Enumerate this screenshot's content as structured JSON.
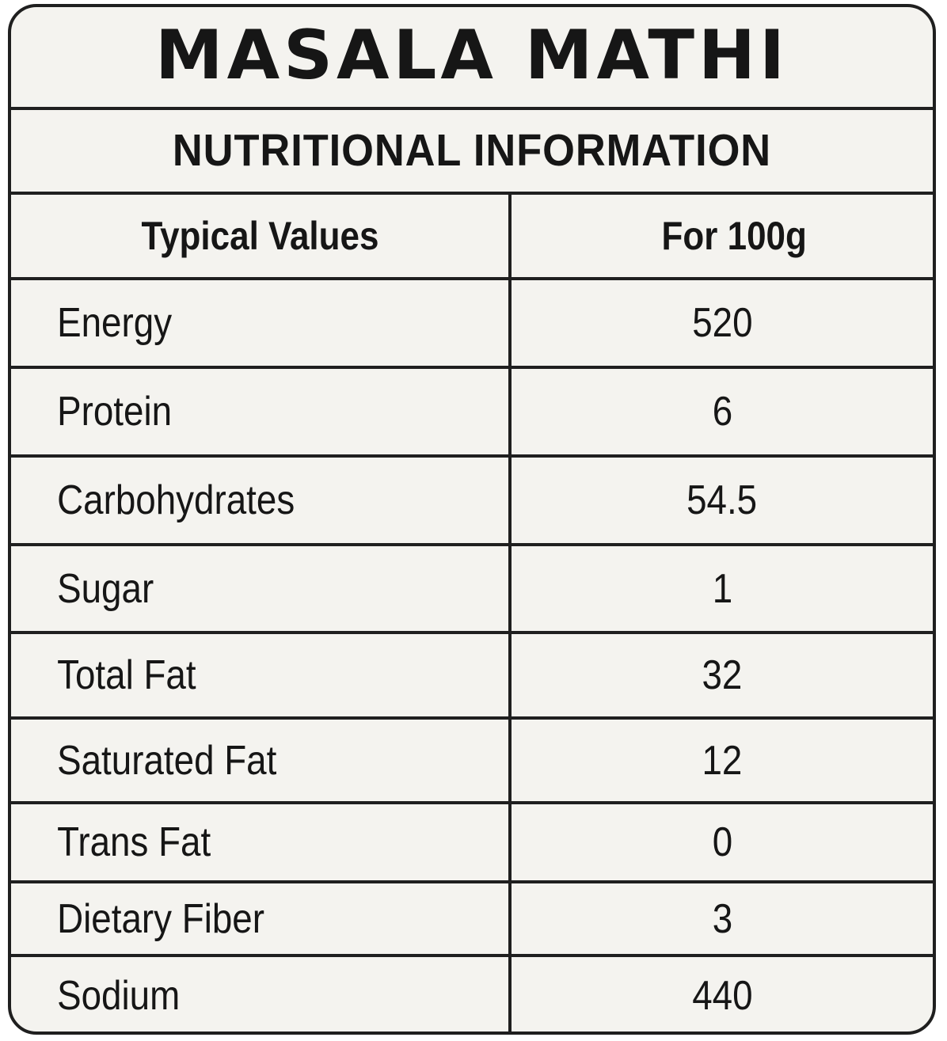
{
  "product_name": "MASALA MATHI",
  "section_title": "NUTRITIONAL INFORMATION",
  "table": {
    "columns": [
      "Typical Values",
      "For 100g"
    ],
    "rows": [
      {
        "nutrient": "Energy",
        "value": "520"
      },
      {
        "nutrient": "Protein",
        "value": "6"
      },
      {
        "nutrient": "Carbohydrates",
        "value": "54.5"
      },
      {
        "nutrient": "Sugar",
        "value": "1"
      },
      {
        "nutrient": "Total Fat",
        "value": "32"
      },
      {
        "nutrient": "Saturated Fat",
        "value": "12"
      },
      {
        "nutrient": "Trans Fat",
        "value": "0"
      },
      {
        "nutrient": "Dietary Fiber",
        "value": "3"
      },
      {
        "nutrient": "Sodium",
        "value": "440"
      }
    ]
  },
  "colors": {
    "background": "#f4f3ef",
    "ink": "#161616",
    "border": "#1f1f1f"
  }
}
